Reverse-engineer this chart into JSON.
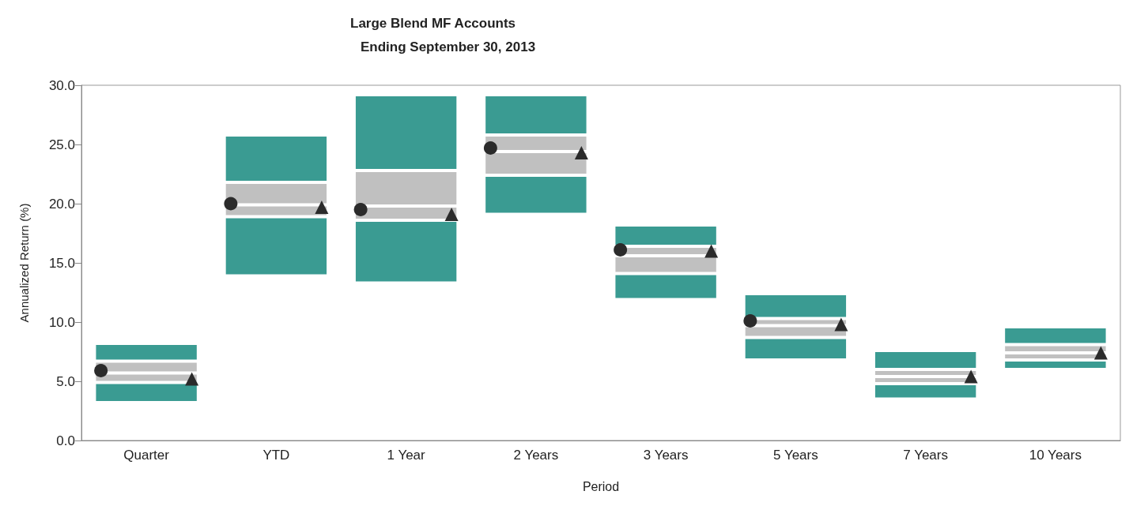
{
  "chart_data": {
    "type": "bar",
    "title": "Large Blend MF Accounts",
    "subtitle": "Ending September 30, 2013",
    "xlabel": "Period",
    "ylabel": "Annualized Return (%)",
    "categories": [
      "Quarter",
      "YTD",
      "1 Year",
      "2 Years",
      "3 Years",
      "5 Years",
      "7 Years",
      "10 Years"
    ],
    "series": [
      {
        "color": "#3a9b92",
        "base": [
          3.2,
          13.9,
          13.3,
          19.1,
          11.9,
          6.8,
          3.5,
          6.0
        ],
        "values": [
          1.7,
          5.0,
          5.3,
          3.3,
          2.2,
          1.9,
          1.3,
          0.8
        ]
      },
      {
        "color": "#c0c0c0",
        "base": [
          4.9,
          18.9,
          18.6,
          22.4,
          14.1,
          8.7,
          4.8,
          6.8
        ],
        "values": [
          0.8,
          1.0,
          1.2,
          2.0,
          1.5,
          1.0,
          0.6,
          0.6
        ]
      },
      {
        "color": "#c0c0c0",
        "base": [
          5.7,
          19.9,
          19.8,
          24.4,
          15.6,
          9.7,
          5.4,
          7.4
        ],
        "values": [
          1.0,
          1.9,
          3.0,
          1.4,
          0.8,
          0.6,
          0.6,
          0.7
        ]
      },
      {
        "color": "#3a9b92",
        "base": [
          6.7,
          21.8,
          22.8,
          25.8,
          16.4,
          10.3,
          6.0,
          8.1
        ],
        "values": [
          1.5,
          4.0,
          6.4,
          3.4,
          1.8,
          2.1,
          1.6,
          1.5
        ]
      },
      {
        "type": "scatter",
        "marker": "circle",
        "color": "#2b2b2b",
        "x": [
          "Quarter",
          "YTD",
          "1 Year",
          "2 Years",
          "3 Years",
          "5 Years",
          "7 Years",
          "10 Years"
        ],
        "values": [
          5.9,
          20.0,
          19.5,
          24.7,
          16.1,
          10.1,
          null,
          null
        ]
      },
      {
        "type": "scatter",
        "marker": "triangle",
        "color": "#2b2b2b",
        "x": [
          "Quarter",
          "YTD",
          "1 Year",
          "2 Years",
          "3 Years",
          "5 Years",
          "7 Years",
          "10 Years"
        ],
        "values": [
          5.2,
          19.7,
          19.1,
          24.3,
          16.0,
          9.8,
          5.4,
          7.4
        ]
      }
    ],
    "ylim": [
      0,
      30
    ],
    "yticks": [
      {
        "value": 0,
        "label": "0.0"
      },
      {
        "value": 5,
        "label": "5.0"
      },
      {
        "value": 10,
        "label": "10.0"
      },
      {
        "value": 15,
        "label": "15.0"
      },
      {
        "value": 20,
        "label": "20.0"
      },
      {
        "value": 25,
        "label": "25.0"
      },
      {
        "value": 30,
        "label": "30.0"
      }
    ],
    "grid": false
  }
}
